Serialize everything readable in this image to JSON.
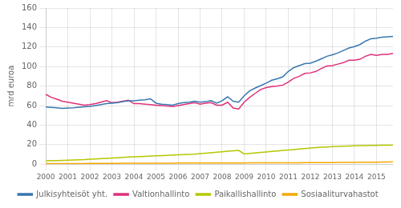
{
  "chart_data": {
    "type": "line",
    "y_label": "mrd euroa",
    "categories": [
      "2000",
      null,
      null,
      null,
      "2001",
      null,
      null,
      null,
      "2002",
      null,
      null,
      null,
      "2003",
      null,
      null,
      null,
      "2004",
      null,
      null,
      null,
      "2005",
      null,
      null,
      null,
      "2006",
      null,
      null,
      null,
      "2007",
      null,
      null,
      null,
      "2008",
      null,
      null,
      null,
      "2009",
      null,
      null,
      null,
      "2010",
      null,
      null,
      null,
      "2011",
      null,
      null,
      null,
      "2012",
      null,
      null,
      null,
      "2013",
      null,
      null,
      null,
      "2014",
      null,
      null,
      null,
      "2015",
      null,
      null,
      null
    ],
    "series": [
      {
        "name": "Julkisyhteisöt yht.",
        "color": "#3777b0",
        "values": [
          58.5,
          58.2,
          57.8,
          57.2,
          57.5,
          57.8,
          58.3,
          58.8,
          59.2,
          60.0,
          61.0,
          62.0,
          62.5,
          63.0,
          64.0,
          65.0,
          65.0,
          65.5,
          66.0,
          67.0,
          62.5,
          61.5,
          61.0,
          60.5,
          62.0,
          63.0,
          63.5,
          64.5,
          63.5,
          64.0,
          65.0,
          62.5,
          65.0,
          69.0,
          64.5,
          63.5,
          70.0,
          75.0,
          78.0,
          80.5,
          83.0,
          86.0,
          87.5,
          89.5,
          95.0,
          99.0,
          101.0,
          103.0,
          103.5,
          105.5,
          108.0,
          110.5,
          112.0,
          114.0,
          116.5,
          119.0,
          120.5,
          122.5,
          126.0,
          128.5,
          129.0,
          130.0,
          130.5,
          131.0
        ]
      },
      {
        "name": "Valtionhallinto",
        "color": "#e0307a",
        "values": [
          71.5,
          68.5,
          66.5,
          64.5,
          63.5,
          62.5,
          61.5,
          60.5,
          61.0,
          62.0,
          63.5,
          65.0,
          63.0,
          63.5,
          64.5,
          65.5,
          62.0,
          62.0,
          61.5,
          61.0,
          60.5,
          60.0,
          59.5,
          59.0,
          60.0,
          61.0,
          62.0,
          63.0,
          61.5,
          62.5,
          63.0,
          60.5,
          60.5,
          63.5,
          57.5,
          56.5,
          63.5,
          68.5,
          72.5,
          76.5,
          78.5,
          79.5,
          80.0,
          81.0,
          84.0,
          88.0,
          90.0,
          93.0,
          93.5,
          95.0,
          98.0,
          100.5,
          101.0,
          102.5,
          104.0,
          106.5,
          106.5,
          107.5,
          110.5,
          112.5,
          111.5,
          112.5,
          112.5,
          113.5
        ]
      },
      {
        "name": "Paikallishallinto",
        "color": "#b5c700",
        "values": [
          3.5,
          3.6,
          3.7,
          3.8,
          4.0,
          4.2,
          4.4,
          4.6,
          5.0,
          5.3,
          5.6,
          6.0,
          6.3,
          6.6,
          7.0,
          7.3,
          7.5,
          7.8,
          8.0,
          8.3,
          8.5,
          8.8,
          9.0,
          9.3,
          9.5,
          9.8,
          10.0,
          10.3,
          10.8,
          11.2,
          11.7,
          12.2,
          12.7,
          13.2,
          13.7,
          14.0,
          10.5,
          11.0,
          11.5,
          12.0,
          12.5,
          13.0,
          13.5,
          14.0,
          14.5,
          15.0,
          15.5,
          16.0,
          16.5,
          17.0,
          17.3,
          17.6,
          17.9,
          18.1,
          18.3,
          18.6,
          18.8,
          19.0,
          19.1,
          19.3,
          19.3,
          19.4,
          19.4,
          19.5
        ]
      },
      {
        "name": "Sosiaaliturvahastot",
        "color": "#f5a800",
        "values": [
          0.5,
          0.5,
          0.5,
          0.5,
          0.5,
          0.6,
          0.6,
          0.6,
          0.7,
          0.7,
          0.7,
          0.8,
          0.8,
          0.8,
          0.9,
          0.9,
          0.9,
          1.0,
          1.0,
          1.0,
          1.0,
          1.0,
          1.0,
          1.0,
          1.1,
          1.1,
          1.1,
          1.1,
          1.1,
          1.1,
          1.2,
          1.2,
          1.2,
          1.2,
          1.2,
          1.2,
          1.2,
          1.3,
          1.3,
          1.3,
          1.3,
          1.3,
          1.3,
          1.4,
          1.4,
          1.4,
          1.4,
          1.5,
          1.5,
          1.6,
          1.6,
          1.7,
          1.7,
          1.8,
          1.8,
          1.9,
          1.9,
          2.0,
          2.0,
          2.1,
          2.1,
          2.2,
          2.3,
          2.5
        ]
      }
    ],
    "ylim": [
      0,
      160
    ],
    "yticks": [
      0,
      20,
      40,
      60,
      80,
      100,
      120,
      140,
      160
    ],
    "grid": true,
    "legend": "bottom"
  }
}
